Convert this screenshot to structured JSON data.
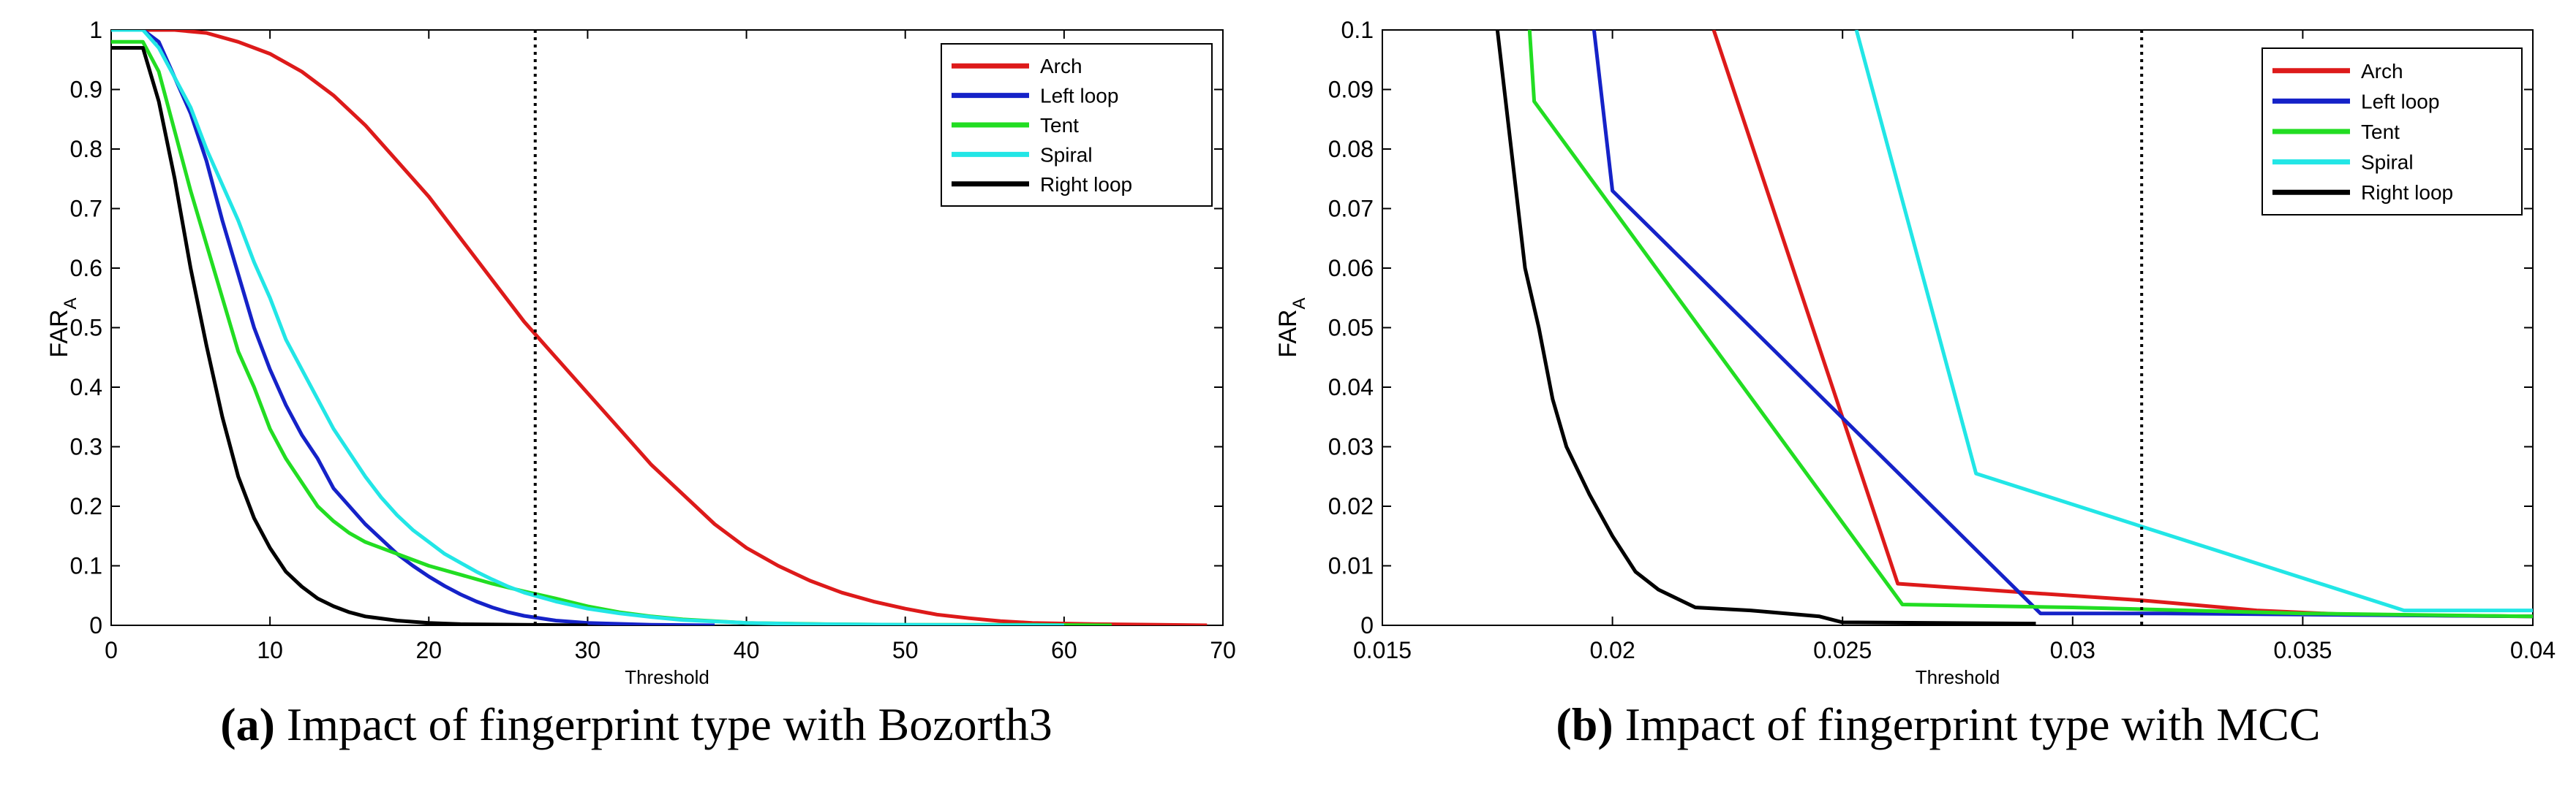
{
  "chart_data": [
    {
      "type": "line",
      "xlabel": "Threshold",
      "ylabel_base": "FAR",
      "ylabel_sub": "A",
      "xlim": [
        0,
        70
      ],
      "ylim": [
        0,
        1
      ],
      "xticks": [
        0,
        10,
        20,
        30,
        40,
        50,
        60,
        70
      ],
      "yticks": [
        0,
        0.1,
        0.2,
        0.3,
        0.4,
        0.5,
        0.6,
        0.7,
        0.8,
        0.9,
        1
      ],
      "vline": 26.7,
      "legend_position": "top-right",
      "caption_label": "(a)",
      "caption_text": "Impact of fingerprint type with Bozorth3",
      "series": [
        {
          "name": "Arch",
          "color": "#dd1a1a",
          "points": [
            [
              0,
              1
            ],
            [
              4,
              1
            ],
            [
              6,
              0.995
            ],
            [
              8,
              0.98
            ],
            [
              10,
              0.96
            ],
            [
              12,
              0.93
            ],
            [
              14,
              0.89
            ],
            [
              16,
              0.84
            ],
            [
              18,
              0.78
            ],
            [
              20,
              0.72
            ],
            [
              22,
              0.65
            ],
            [
              24,
              0.58
            ],
            [
              26,
              0.51
            ],
            [
              27,
              0.48
            ],
            [
              28,
              0.45
            ],
            [
              30,
              0.39
            ],
            [
              32,
              0.33
            ],
            [
              34,
              0.27
            ],
            [
              36,
              0.22
            ],
            [
              38,
              0.17
            ],
            [
              40,
              0.13
            ],
            [
              42,
              0.1
            ],
            [
              44,
              0.075
            ],
            [
              46,
              0.055
            ],
            [
              48,
              0.04
            ],
            [
              50,
              0.028
            ],
            [
              52,
              0.018
            ],
            [
              54,
              0.012
            ],
            [
              56,
              0.007
            ],
            [
              58,
              0.004
            ],
            [
              62,
              0.002
            ],
            [
              66,
              0.001
            ],
            [
              69,
              0
            ]
          ]
        },
        {
          "name": "Left loop",
          "color": "#1522c8",
          "points": [
            [
              0,
              1
            ],
            [
              2,
              1
            ],
            [
              3,
              0.98
            ],
            [
              4,
              0.92
            ],
            [
              5,
              0.86
            ],
            [
              6,
              0.78
            ],
            [
              7,
              0.68
            ],
            [
              8,
              0.59
            ],
            [
              9,
              0.5
            ],
            [
              10,
              0.43
            ],
            [
              11,
              0.37
            ],
            [
              12,
              0.32
            ],
            [
              13,
              0.28
            ],
            [
              14,
              0.23
            ],
            [
              15,
              0.2
            ],
            [
              16,
              0.17
            ],
            [
              17,
              0.145
            ],
            [
              18,
              0.12
            ],
            [
              19,
              0.1
            ],
            [
              20,
              0.082
            ],
            [
              21,
              0.066
            ],
            [
              22,
              0.052
            ],
            [
              23,
              0.04
            ],
            [
              24,
              0.03
            ],
            [
              25,
              0.022
            ],
            [
              26,
              0.016
            ],
            [
              28,
              0.008
            ],
            [
              30,
              0.004
            ],
            [
              34,
              0.001
            ],
            [
              38,
              0
            ]
          ]
        },
        {
          "name": "Tent",
          "color": "#22dd22",
          "points": [
            [
              0,
              0.98
            ],
            [
              2,
              0.98
            ],
            [
              3,
              0.93
            ],
            [
              4,
              0.83
            ],
            [
              5,
              0.73
            ],
            [
              6,
              0.64
            ],
            [
              7,
              0.55
            ],
            [
              8,
              0.46
            ],
            [
              9,
              0.4
            ],
            [
              10,
              0.33
            ],
            [
              11,
              0.28
            ],
            [
              12,
              0.24
            ],
            [
              13,
              0.2
            ],
            [
              14,
              0.175
            ],
            [
              15,
              0.155
            ],
            [
              16,
              0.14
            ],
            [
              18,
              0.12
            ],
            [
              20,
              0.1
            ],
            [
              22,
              0.085
            ],
            [
              24,
              0.07
            ],
            [
              26,
              0.057
            ],
            [
              28,
              0.045
            ],
            [
              30,
              0.032
            ],
            [
              32,
              0.022
            ],
            [
              34,
              0.015
            ],
            [
              36,
              0.01
            ],
            [
              40,
              0.004
            ],
            [
              45,
              0.002
            ],
            [
              50,
              0.001
            ],
            [
              58,
              0.001
            ],
            [
              63,
              0
            ]
          ]
        },
        {
          "name": "Spiral",
          "color": "#22e6e6",
          "points": [
            [
              0,
              1
            ],
            [
              2,
              1
            ],
            [
              3,
              0.97
            ],
            [
              4,
              0.92
            ],
            [
              5,
              0.87
            ],
            [
              6,
              0.8
            ],
            [
              7,
              0.74
            ],
            [
              8,
              0.68
            ],
            [
              9,
              0.61
            ],
            [
              10,
              0.55
            ],
            [
              11,
              0.48
            ],
            [
              12,
              0.43
            ],
            [
              13,
              0.38
            ],
            [
              14,
              0.33
            ],
            [
              15,
              0.29
            ],
            [
              16,
              0.25
            ],
            [
              17,
              0.215
            ],
            [
              18,
              0.185
            ],
            [
              19,
              0.16
            ],
            [
              20,
              0.14
            ],
            [
              21,
              0.12
            ],
            [
              22,
              0.105
            ],
            [
              23,
              0.09
            ],
            [
              24,
              0.077
            ],
            [
              25,
              0.065
            ],
            [
              26,
              0.055
            ],
            [
              28,
              0.04
            ],
            [
              30,
              0.028
            ],
            [
              32,
              0.02
            ],
            [
              34,
              0.014
            ],
            [
              36,
              0.009
            ],
            [
              40,
              0.004
            ],
            [
              44,
              0.002
            ],
            [
              50,
              0.001
            ],
            [
              60,
              0
            ]
          ]
        },
        {
          "name": "Right loop",
          "color": "#000000",
          "points": [
            [
              0,
              0.97
            ],
            [
              2,
              0.97
            ],
            [
              3,
              0.88
            ],
            [
              4,
              0.75
            ],
            [
              5,
              0.6
            ],
            [
              6,
              0.47
            ],
            [
              7,
              0.35
            ],
            [
              8,
              0.25
            ],
            [
              9,
              0.18
            ],
            [
              10,
              0.13
            ],
            [
              11,
              0.09
            ],
            [
              12,
              0.065
            ],
            [
              13,
              0.045
            ],
            [
              14,
              0.032
            ],
            [
              15,
              0.022
            ],
            [
              16,
              0.015
            ],
            [
              18,
              0.008
            ],
            [
              20,
              0.004
            ],
            [
              22,
              0.002
            ],
            [
              26,
              0.001
            ],
            [
              30,
              0
            ]
          ]
        }
      ]
    },
    {
      "type": "line",
      "xlabel": "Threshold",
      "ylabel_base": "FAR",
      "ylabel_sub": "A",
      "xlim": [
        0.015,
        0.04
      ],
      "ylim": [
        0,
        0.1
      ],
      "xticks": [
        0.015,
        0.02,
        0.025,
        0.03,
        0.035,
        0.04
      ],
      "yticks": [
        0,
        0.01,
        0.02,
        0.03,
        0.04,
        0.05,
        0.06,
        0.07,
        0.08,
        0.09,
        0.1
      ],
      "vline": 0.0315,
      "legend_position": "top-right",
      "caption_label": "(b)",
      "caption_text": "Impact of fingerprint type with MCC",
      "series": [
        {
          "name": "Arch",
          "color": "#dd1a1a",
          "points": [
            [
              0.0222,
              0.1
            ],
            [
              0.0262,
              0.007
            ],
            [
              0.029,
              0.0055
            ],
            [
              0.0315,
              0.0042
            ],
            [
              0.034,
              0.0025
            ],
            [
              0.036,
              0.0018
            ],
            [
              0.04,
              0.0015
            ]
          ]
        },
        {
          "name": "Left loop",
          "color": "#1522c8",
          "points": [
            [
              0.0196,
              0.1
            ],
            [
              0.02,
              0.073
            ],
            [
              0.0293,
              0.002
            ],
            [
              0.032,
              0.002
            ],
            [
              0.04,
              0.0015
            ]
          ]
        },
        {
          "name": "Tent",
          "color": "#22dd22",
          "points": [
            [
              0.0182,
              0.1
            ],
            [
              0.0183,
              0.088
            ],
            [
              0.0263,
              0.0035
            ],
            [
              0.03,
              0.003
            ],
            [
              0.035,
              0.002
            ],
            [
              0.04,
              0.0015
            ]
          ]
        },
        {
          "name": "Spiral",
          "color": "#22e6e6",
          "points": [
            [
              0.0253,
              0.1
            ],
            [
              0.0279,
              0.0255
            ],
            [
              0.0372,
              0.0025
            ],
            [
              0.04,
              0.0025
            ]
          ]
        },
        {
          "name": "Right loop",
          "color": "#000000",
          "points": [
            [
              0.0175,
              0.1
            ],
            [
              0.0178,
              0.08
            ],
            [
              0.0181,
              0.06
            ],
            [
              0.0184,
              0.05
            ],
            [
              0.0187,
              0.038
            ],
            [
              0.019,
              0.03
            ],
            [
              0.0195,
              0.022
            ],
            [
              0.02,
              0.015
            ],
            [
              0.0205,
              0.009
            ],
            [
              0.021,
              0.006
            ],
            [
              0.0218,
              0.003
            ],
            [
              0.023,
              0.0025
            ],
            [
              0.0245,
              0.0015
            ],
            [
              0.025,
              0.0005
            ],
            [
              0.0292,
              0.0003
            ]
          ]
        }
      ]
    }
  ]
}
